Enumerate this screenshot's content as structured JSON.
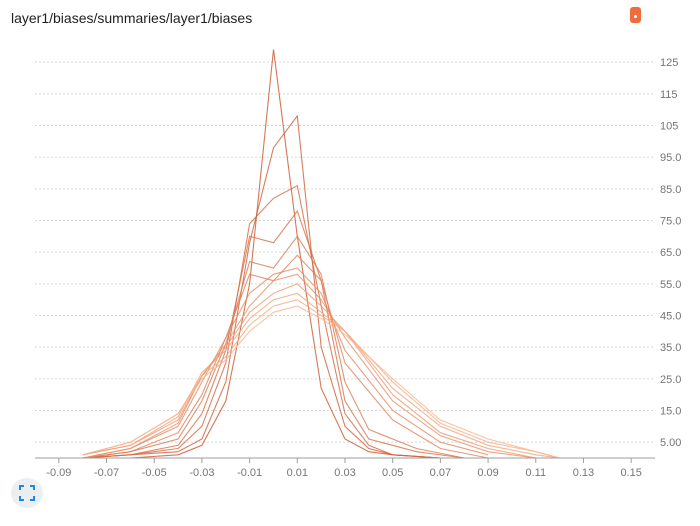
{
  "card": {
    "title": "layer1/biases/summaries/layer1/biases"
  },
  "controls": {
    "menu_icon": "dots-vertical-icon",
    "fit_icon": "fit-domain-icon"
  },
  "colors": {
    "line": "#e8764a",
    "menu": "#ef6c3d",
    "grid": "#d6d6d6",
    "axis": "#9e9e9e"
  },
  "chart_data": {
    "type": "line",
    "title": "",
    "xlabel": "",
    "ylabel": "",
    "xlim": [
      -0.1,
      0.16
    ],
    "ylim": [
      0,
      132
    ],
    "x_ticks": [
      -0.09,
      -0.07,
      -0.05,
      -0.03,
      -0.01,
      0.01,
      0.03,
      0.05,
      0.07,
      0.09,
      0.11,
      0.13,
      0.15
    ],
    "x_tick_labels": [
      "-0.09",
      "-0.07",
      "-0.05",
      "-0.03",
      "-0.01",
      "0.01",
      "0.03",
      "0.05",
      "0.07",
      "0.09",
      "0.11",
      "0.13",
      "0.15"
    ],
    "y_ticks": [
      5,
      15,
      25,
      35,
      45,
      55,
      65,
      75,
      85,
      95,
      105,
      115,
      125
    ],
    "y_tick_labels": [
      "5.00",
      "15.0",
      "25.0",
      "35.0",
      "45.0",
      "55.0",
      "65.0",
      "75.0",
      "85.0",
      "95.0",
      "105",
      "115",
      "125"
    ],
    "grid": true,
    "series_style": "histogram overlay, oldest (dark, narrow) to newest (light, wide)",
    "series": [
      {
        "x": [
          -0.08,
          -0.06,
          -0.04,
          -0.03,
          -0.02,
          -0.01,
          0.0,
          0.01,
          0.02,
          0.03,
          0.04,
          0.05,
          0.07
        ],
        "values": [
          0,
          0,
          1,
          4,
          18,
          55,
          129,
          70,
          22,
          6,
          2,
          1,
          0
        ]
      },
      {
        "x": [
          -0.08,
          -0.06,
          -0.04,
          -0.03,
          -0.02,
          -0.01,
          0.0,
          0.01,
          0.02,
          0.03,
          0.04,
          0.05,
          0.07
        ],
        "values": [
          0,
          1,
          2,
          6,
          24,
          68,
          98,
          108,
          35,
          10,
          3,
          1,
          0
        ]
      },
      {
        "x": [
          -0.08,
          -0.06,
          -0.04,
          -0.03,
          -0.02,
          -0.01,
          0.0,
          0.01,
          0.02,
          0.03,
          0.04,
          0.05,
          0.07
        ],
        "values": [
          0,
          1,
          3,
          10,
          30,
          74,
          82,
          86,
          48,
          14,
          4,
          1,
          0
        ]
      },
      {
        "x": [
          -0.08,
          -0.06,
          -0.04,
          -0.03,
          -0.02,
          -0.01,
          0.0,
          0.01,
          0.02,
          0.03,
          0.04,
          0.06,
          0.08
        ],
        "values": [
          0,
          1,
          4,
          14,
          34,
          70,
          68,
          78,
          56,
          18,
          6,
          2,
          0
        ]
      },
      {
        "x": [
          -0.08,
          -0.06,
          -0.04,
          -0.03,
          -0.02,
          -0.01,
          0.0,
          0.01,
          0.02,
          0.03,
          0.04,
          0.06,
          0.08
        ],
        "values": [
          0,
          2,
          6,
          18,
          36,
          62,
          60,
          70,
          58,
          24,
          9,
          3,
          0
        ]
      },
      {
        "x": [
          -0.08,
          -0.06,
          -0.04,
          -0.03,
          -0.02,
          -0.01,
          0.0,
          0.01,
          0.02,
          0.03,
          0.05,
          0.07,
          0.09
        ],
        "values": [
          0,
          2,
          8,
          20,
          38,
          58,
          56,
          64,
          56,
          30,
          12,
          3,
          0
        ]
      },
      {
        "x": [
          -0.08,
          -0.06,
          -0.04,
          -0.03,
          -0.02,
          -0.01,
          0.0,
          0.01,
          0.02,
          0.03,
          0.05,
          0.07,
          0.09
        ],
        "values": [
          0,
          3,
          10,
          24,
          38,
          52,
          58,
          60,
          52,
          34,
          15,
          5,
          1
        ]
      },
      {
        "x": [
          -0.08,
          -0.06,
          -0.04,
          -0.03,
          -0.02,
          -0.01,
          0.0,
          0.01,
          0.02,
          0.03,
          0.05,
          0.07,
          0.09,
          0.11
        ],
        "values": [
          0,
          3,
          11,
          26,
          36,
          48,
          56,
          58,
          50,
          38,
          18,
          7,
          2,
          0
        ]
      },
      {
        "x": [
          -0.08,
          -0.06,
          -0.04,
          -0.03,
          -0.02,
          -0.01,
          0.0,
          0.01,
          0.02,
          0.03,
          0.05,
          0.07,
          0.09,
          0.11
        ],
        "values": [
          1,
          4,
          12,
          26,
          35,
          46,
          52,
          55,
          48,
          40,
          20,
          8,
          3,
          0
        ]
      },
      {
        "x": [
          -0.08,
          -0.06,
          -0.04,
          -0.03,
          -0.02,
          -0.01,
          0.0,
          0.01,
          0.02,
          0.03,
          0.05,
          0.07,
          0.09,
          0.11,
          0.12
        ],
        "values": [
          1,
          4,
          13,
          27,
          34,
          44,
          50,
          52,
          46,
          40,
          22,
          10,
          4,
          1,
          0
        ]
      },
      {
        "x": [
          -0.08,
          -0.06,
          -0.04,
          -0.03,
          -0.02,
          -0.01,
          0.0,
          0.01,
          0.02,
          0.03,
          0.05,
          0.07,
          0.09,
          0.11,
          0.12
        ],
        "values": [
          1,
          5,
          14,
          26,
          32,
          42,
          48,
          50,
          45,
          40,
          24,
          11,
          5,
          2,
          0
        ]
      },
      {
        "x": [
          -0.08,
          -0.06,
          -0.04,
          -0.03,
          -0.02,
          -0.01,
          0.0,
          0.01,
          0.02,
          0.03,
          0.05,
          0.07,
          0.09,
          0.11,
          0.12
        ],
        "values": [
          1,
          5,
          14,
          25,
          31,
          40,
          46,
          48,
          44,
          39,
          25,
          12,
          6,
          2,
          0
        ]
      }
    ]
  }
}
